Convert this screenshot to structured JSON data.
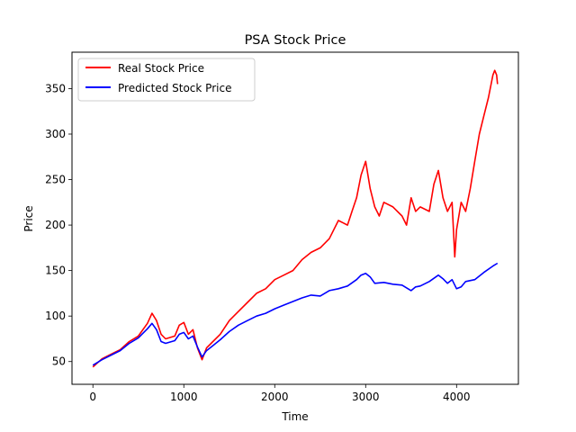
{
  "chart_data": {
    "type": "line",
    "title": "PSA Stock Price",
    "xlabel": "Time",
    "ylabel": "Price",
    "xlim": [
      -230,
      4680
    ],
    "ylim": [
      25,
      390
    ],
    "xticks": [
      0,
      1000,
      2000,
      3000,
      4000
    ],
    "yticks": [
      50,
      100,
      150,
      200,
      250,
      300,
      350
    ],
    "grid": false,
    "legend_position": "top-left",
    "series": [
      {
        "name": "Real Stock Price",
        "color": "#ff0000",
        "x": [
          0,
          100,
          200,
          300,
          400,
          500,
          600,
          650,
          700,
          750,
          800,
          900,
          950,
          1000,
          1050,
          1100,
          1150,
          1200,
          1250,
          1300,
          1400,
          1500,
          1600,
          1700,
          1800,
          1900,
          2000,
          2100,
          2200,
          2300,
          2400,
          2500,
          2600,
          2700,
          2800,
          2850,
          2900,
          2950,
          3000,
          3050,
          3100,
          3150,
          3200,
          3300,
          3400,
          3450,
          3500,
          3550,
          3600,
          3700,
          3750,
          3800,
          3850,
          3900,
          3950,
          3980,
          4000,
          4050,
          4100,
          4150,
          4200,
          4250,
          4300,
          4350,
          4400,
          4420,
          4440,
          4450
        ],
        "values": [
          44,
          53,
          58,
          63,
          72,
          78,
          92,
          103,
          95,
          80,
          75,
          78,
          90,
          93,
          80,
          85,
          65,
          52,
          65,
          70,
          80,
          95,
          105,
          115,
          125,
          130,
          140,
          145,
          150,
          162,
          170,
          175,
          185,
          205,
          200,
          215,
          230,
          255,
          270,
          240,
          220,
          210,
          225,
          220,
          210,
          200,
          230,
          215,
          220,
          215,
          245,
          260,
          230,
          215,
          225,
          165,
          195,
          225,
          215,
          240,
          270,
          300,
          320,
          340,
          365,
          370,
          365,
          355
        ]
      },
      {
        "name": "Predicted Stock Price",
        "color": "#0000ff",
        "x": [
          0,
          100,
          200,
          300,
          400,
          500,
          600,
          650,
          700,
          750,
          800,
          900,
          950,
          1000,
          1050,
          1100,
          1150,
          1200,
          1250,
          1300,
          1400,
          1500,
          1600,
          1700,
          1800,
          1900,
          2000,
          2100,
          2200,
          2300,
          2400,
          2500,
          2600,
          2700,
          2800,
          2900,
          2950,
          3000,
          3050,
          3100,
          3200,
          3300,
          3400,
          3500,
          3550,
          3600,
          3700,
          3800,
          3850,
          3900,
          3950,
          4000,
          4050,
          4100,
          4200,
          4300,
          4400,
          4450
        ],
        "values": [
          46,
          52,
          57,
          62,
          70,
          76,
          86,
          92,
          85,
          72,
          70,
          73,
          80,
          82,
          75,
          78,
          66,
          55,
          62,
          66,
          74,
          83,
          90,
          95,
          100,
          103,
          108,
          112,
          116,
          120,
          123,
          122,
          128,
          130,
          133,
          140,
          145,
          147,
          143,
          136,
          137,
          135,
          134,
          128,
          132,
          133,
          138,
          145,
          141,
          136,
          140,
          130,
          132,
          138,
          140,
          148,
          155,
          158
        ]
      }
    ]
  }
}
